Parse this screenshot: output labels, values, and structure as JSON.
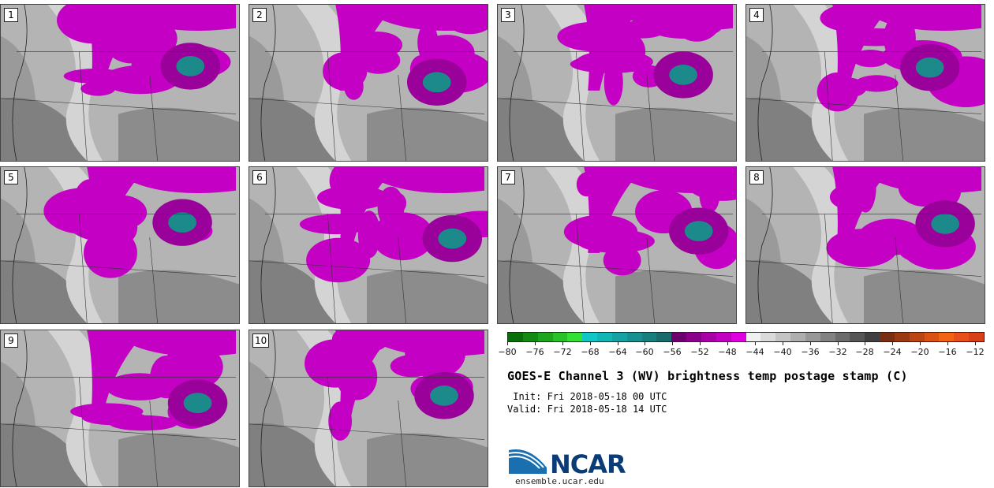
{
  "panels": [
    {
      "label": "1"
    },
    {
      "label": "2"
    },
    {
      "label": "3"
    },
    {
      "label": "4"
    },
    {
      "label": "5"
    },
    {
      "label": "6"
    },
    {
      "label": "7"
    },
    {
      "label": "8"
    },
    {
      "label": "9"
    },
    {
      "label": "10"
    }
  ],
  "colorbar": {
    "colors": [
      "#0a6e0a",
      "#138a13",
      "#1da61d",
      "#27c227",
      "#33e033",
      "#10c6c6",
      "#12b4b4",
      "#14a2a2",
      "#169090",
      "#187e7e",
      "#1a6c6c",
      "#6e006e",
      "#8a008a",
      "#a600a6",
      "#c200c2",
      "#de00de",
      "#f0f0f0",
      "#dadada",
      "#c4c4c4",
      "#aeaeae",
      "#989898",
      "#828282",
      "#6c6c6c",
      "#565656",
      "#404040",
      "#7a2e14",
      "#9a3a14",
      "#ba4614",
      "#da5214",
      "#f06414",
      "#e8501a",
      "#d84018"
    ],
    "tick_labels": [
      "-80",
      "-76",
      "-72",
      "-68",
      "-64",
      "-60",
      "-56",
      "-52",
      "-48",
      "-44",
      "-40",
      "-36",
      "-32",
      "-28",
      "-24",
      "-20",
      "-16",
      "-12"
    ]
  },
  "text": {
    "title": "GOES-E Channel 3 (WV) brightness temp postage stamp (C)",
    "init": " Init: Fri 2018-05-18 00 UTC",
    "valid": "Valid: Fri 2018-05-18 14 UTC",
    "logo": "NCAR",
    "url": "ensemble.ucar.edu"
  }
}
